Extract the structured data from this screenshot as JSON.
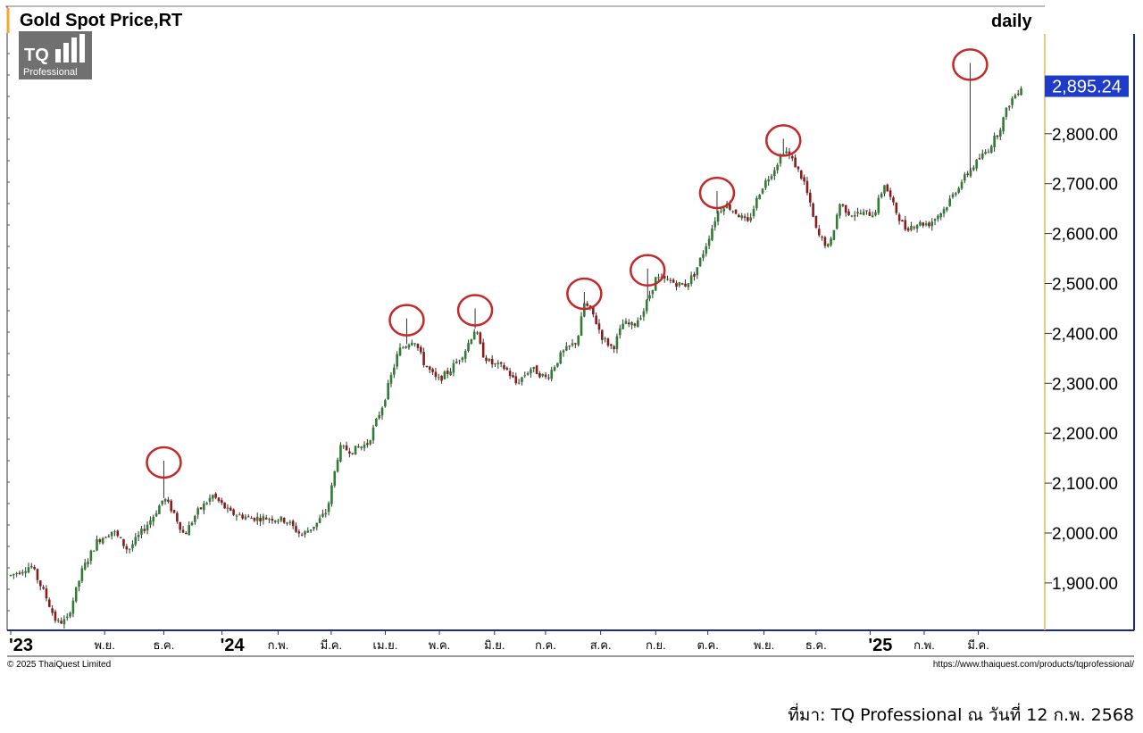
{
  "title": "Gold Spot Price,RT",
  "logo": {
    "brand": "TQ",
    "sub": "Professional"
  },
  "timeframe": "daily",
  "last_price_label": "2,895.24",
  "copyright": "© 2025 ThaiQuest Limited",
  "url_text": "https://www.thaiquest.com/products/tqprofessional/",
  "caption": "ที่มา: TQ Professional ณ วันที่ 12 ก.พ. 2568",
  "colors": {
    "up": "#2e7d32",
    "down": "#8b1a1a",
    "wick": "#333333",
    "circle": "#c62828",
    "price_tag": "#1e3cc8",
    "axis_border": "#1a2a8c",
    "right_rule": "#e8b84a"
  },
  "chart_data": {
    "type": "candlestick",
    "title": "Gold Spot Price,RT",
    "timeframe": "daily",
    "ylim": [
      1805,
      3000
    ],
    "y_ticks": [
      1900,
      2000,
      2100,
      2200,
      2300,
      2400,
      2500,
      2600,
      2700,
      2800
    ],
    "y_tick_labels": [
      "1,900.00",
      "2,000.00",
      "2,100.00",
      "2,200.00",
      "2,300.00",
      "2,400.00",
      "2,500.00",
      "2,600.00",
      "2,700.00",
      "2,800.00"
    ],
    "last_price": 2895.24,
    "x_labels": [
      {
        "text": "'23",
        "major": true,
        "pos": 0.0
      },
      {
        "text": "พ.ย.",
        "major": false,
        "pos": 0.092
      },
      {
        "text": "ธ.ค.",
        "major": false,
        "pos": 0.15
      },
      {
        "text": "'24",
        "major": true,
        "pos": 0.207
      },
      {
        "text": "ก.พ.",
        "major": false,
        "pos": 0.262
      },
      {
        "text": "มี.ค.",
        "major": false,
        "pos": 0.314
      },
      {
        "text": "เม.ย.",
        "major": false,
        "pos": 0.367
      },
      {
        "text": "พ.ค.",
        "major": false,
        "pos": 0.42
      },
      {
        "text": "มิ.ย.",
        "major": false,
        "pos": 0.474
      },
      {
        "text": "ก.ค.",
        "major": false,
        "pos": 0.524
      },
      {
        "text": "ส.ค.",
        "major": false,
        "pos": 0.578
      },
      {
        "text": "ก.ย.",
        "major": false,
        "pos": 0.632
      },
      {
        "text": "ต.ค.",
        "major": false,
        "pos": 0.683
      },
      {
        "text": "พ.ย.",
        "major": false,
        "pos": 0.738
      },
      {
        "text": "ธ.ค.",
        "major": false,
        "pos": 0.789
      },
      {
        "text": "'25",
        "major": true,
        "pos": 0.842
      },
      {
        "text": "ก.พ.",
        "major": false,
        "pos": 0.895
      },
      {
        "text": "มี.ค.",
        "major": false,
        "pos": 0.948
      }
    ],
    "path_points": [
      [
        0.0,
        1915
      ],
      [
        0.02,
        1935
      ],
      [
        0.035,
        1870
      ],
      [
        0.045,
        1820
      ],
      [
        0.055,
        1825
      ],
      [
        0.07,
        1925
      ],
      [
        0.085,
        1985
      ],
      [
        0.1,
        2005
      ],
      [
        0.115,
        1965
      ],
      [
        0.14,
        2035
      ],
      [
        0.15,
        2070
      ],
      [
        0.16,
        2040
      ],
      [
        0.17,
        1995
      ],
      [
        0.182,
        2040
      ],
      [
        0.198,
        2075
      ],
      [
        0.215,
        2040
      ],
      [
        0.235,
        2030
      ],
      [
        0.255,
        2030
      ],
      [
        0.27,
        2025
      ],
      [
        0.285,
        1995
      ],
      [
        0.3,
        2020
      ],
      [
        0.31,
        2045
      ],
      [
        0.322,
        2170
      ],
      [
        0.335,
        2165
      ],
      [
        0.35,
        2180
      ],
      [
        0.365,
        2260
      ],
      [
        0.38,
        2365
      ],
      [
        0.395,
        2390
      ],
      [
        0.405,
        2340
      ],
      [
        0.418,
        2305
      ],
      [
        0.43,
        2325
      ],
      [
        0.445,
        2365
      ],
      [
        0.455,
        2410
      ],
      [
        0.462,
        2360
      ],
      [
        0.47,
        2340
      ],
      [
        0.485,
        2330
      ],
      [
        0.495,
        2300
      ],
      [
        0.51,
        2330
      ],
      [
        0.525,
        2310
      ],
      [
        0.54,
        2360
      ],
      [
        0.555,
        2385
      ],
      [
        0.562,
        2460
      ],
      [
        0.57,
        2440
      ],
      [
        0.58,
        2390
      ],
      [
        0.59,
        2370
      ],
      [
        0.6,
        2420
      ],
      [
        0.61,
        2415
      ],
      [
        0.62,
        2445
      ],
      [
        0.632,
        2510
      ],
      [
        0.645,
        2505
      ],
      [
        0.66,
        2495
      ],
      [
        0.67,
        2520
      ],
      [
        0.68,
        2570
      ],
      [
        0.692,
        2640
      ],
      [
        0.7,
        2660
      ],
      [
        0.712,
        2640
      ],
      [
        0.722,
        2620
      ],
      [
        0.735,
        2690
      ],
      [
        0.748,
        2730
      ],
      [
        0.758,
        2770
      ],
      [
        0.768,
        2740
      ],
      [
        0.778,
        2700
      ],
      [
        0.79,
        2600
      ],
      [
        0.802,
        2570
      ],
      [
        0.812,
        2660
      ],
      [
        0.822,
        2640
      ],
      [
        0.834,
        2640
      ],
      [
        0.846,
        2640
      ],
      [
        0.856,
        2700
      ],
      [
        0.866,
        2650
      ],
      [
        0.876,
        2610
      ],
      [
        0.888,
        2620
      ],
      [
        0.9,
        2620
      ],
      [
        0.915,
        2650
      ],
      [
        0.93,
        2700
      ],
      [
        0.945,
        2740
      ],
      [
        0.958,
        2770
      ],
      [
        0.968,
        2805
      ],
      [
        0.978,
        2860
      ],
      [
        0.99,
        2895
      ]
    ],
    "high_points": [
      {
        "pos": 0.15,
        "value": 2145
      },
      {
        "pos": 0.388,
        "value": 2430
      },
      {
        "pos": 0.455,
        "value": 2450
      },
      {
        "pos": 0.562,
        "value": 2483
      },
      {
        "pos": 0.624,
        "value": 2530
      },
      {
        "pos": 0.692,
        "value": 2685
      },
      {
        "pos": 0.757,
        "value": 2790
      },
      {
        "pos": 0.94,
        "value": 2942
      }
    ]
  }
}
